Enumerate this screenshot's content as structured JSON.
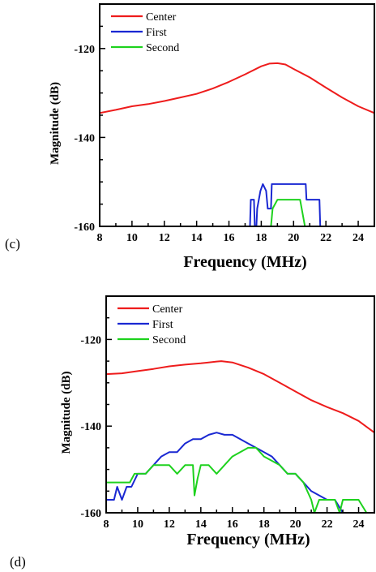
{
  "chart_data": [
    {
      "type": "line",
      "panel_label": "(c)",
      "xlabel": "Frequency (MHz)",
      "ylabel": "Magnitude (dB)",
      "xlim": [
        8,
        25
      ],
      "ylim": [
        -160,
        -110
      ],
      "xticks": [
        8,
        10,
        12,
        14,
        16,
        18,
        20,
        22,
        24
      ],
      "yticks": [
        -160,
        -140,
        -120
      ],
      "grid": false,
      "legend": "top-left",
      "series": [
        {
          "name": "Center",
          "color": "#ee1c1c",
          "x": [
            8,
            9,
            10,
            11,
            12,
            13,
            14,
            15,
            16,
            17,
            18,
            18.5,
            19,
            19.5,
            20,
            21,
            22,
            23,
            24,
            25
          ],
          "y": [
            -134.5,
            -133.8,
            -133,
            -132.5,
            -131.8,
            -131,
            -130.2,
            -129,
            -127.5,
            -125.8,
            -124,
            -123.4,
            -123.3,
            -123.6,
            -124.6,
            -126.5,
            -128.8,
            -131,
            -133,
            -134.5
          ]
        },
        {
          "name": "First",
          "color": "#1a28d2",
          "x": [
            8,
            17.3,
            17.35,
            17.55,
            17.6,
            17.7,
            17.75,
            17.95,
            18.1,
            18.3,
            18.4,
            18.6,
            18.65,
            20.75,
            20.8,
            21.6,
            21.65,
            25
          ],
          "y": [
            -160,
            -160,
            -154,
            -154,
            -160,
            -160,
            -156,
            -152,
            -150.5,
            -152,
            -156,
            -156,
            -150.5,
            -150.5,
            -154,
            -154,
            -160,
            -160
          ]
        },
        {
          "name": "Second",
          "color": "#1ed21e",
          "x": [
            8,
            15,
            16,
            17.5,
            18.6,
            18.7,
            19,
            20.4,
            20.5,
            20.7,
            25
          ],
          "y": [
            -160,
            -160,
            -160,
            -160,
            -160,
            -156,
            -154,
            -154,
            -156,
            -160,
            -160
          ]
        }
      ]
    },
    {
      "type": "line",
      "panel_label": "(d)",
      "xlabel": "Frequency (MHz)",
      "ylabel": "Magnitude (dB)",
      "xlim": [
        8,
        25
      ],
      "ylim": [
        -160,
        -110
      ],
      "xticks": [
        8,
        10,
        12,
        14,
        16,
        18,
        20,
        22,
        24
      ],
      "yticks": [
        -160,
        -140,
        -120
      ],
      "grid": false,
      "legend": "top-left",
      "series": [
        {
          "name": "Center",
          "color": "#ee1c1c",
          "x": [
            8,
            9,
            10,
            11,
            12,
            13,
            14,
            15,
            15.3,
            16,
            17,
            18,
            19,
            20,
            21,
            22,
            23,
            24,
            25
          ],
          "y": [
            -128,
            -127.8,
            -127.3,
            -126.8,
            -126.2,
            -125.8,
            -125.5,
            -125.1,
            -125,
            -125.3,
            -126.5,
            -128,
            -130,
            -132,
            -134,
            -135.6,
            -137,
            -138.8,
            -141.5
          ]
        },
        {
          "name": "First",
          "color": "#1a28d2",
          "x": [
            8,
            8.5,
            8.7,
            9,
            9.3,
            9.6,
            10,
            10.5,
            11,
            11.5,
            12,
            12.5,
            13,
            13.5,
            14,
            14.5,
            15,
            15.5,
            16,
            16.5,
            17,
            17.5,
            18,
            18.5,
            19,
            19.5,
            20,
            20.5,
            21,
            21.5,
            22,
            22.5,
            23,
            25
          ],
          "y": [
            -157,
            -157,
            -154,
            -157,
            -154,
            -154,
            -151,
            -151,
            -149,
            -147,
            -146,
            -146,
            -144,
            -143,
            -143,
            -142,
            -141.5,
            -142,
            -142,
            -143,
            -144,
            -145,
            -146,
            -147,
            -149,
            -151,
            -151,
            -153,
            -155,
            -156,
            -157,
            -157,
            -160,
            -160
          ]
        },
        {
          "name": "Second",
          "color": "#1ed21e",
          "x": [
            8,
            9.5,
            9.8,
            10.5,
            11,
            11.5,
            12,
            12.5,
            13,
            13.5,
            13.6,
            13.8,
            14,
            14.5,
            15,
            15.5,
            16,
            16.5,
            17,
            17.5,
            18,
            18.5,
            19,
            19.5,
            20,
            20.5,
            21,
            21.2,
            21.5,
            22,
            22.5,
            22.8,
            23,
            23.5,
            24,
            24.5,
            25
          ],
          "y": [
            -153,
            -153,
            -151,
            -151,
            -149,
            -149,
            -149,
            -151,
            -149,
            -149,
            -156,
            -152,
            -149,
            -149,
            -151,
            -149,
            -147,
            -146,
            -145,
            -145,
            -147,
            -148,
            -149,
            -151,
            -151,
            -153,
            -157,
            -160,
            -157,
            -157,
            -157,
            -160,
            -157,
            -157,
            -157,
            -160,
            -160
          ]
        }
      ]
    }
  ]
}
